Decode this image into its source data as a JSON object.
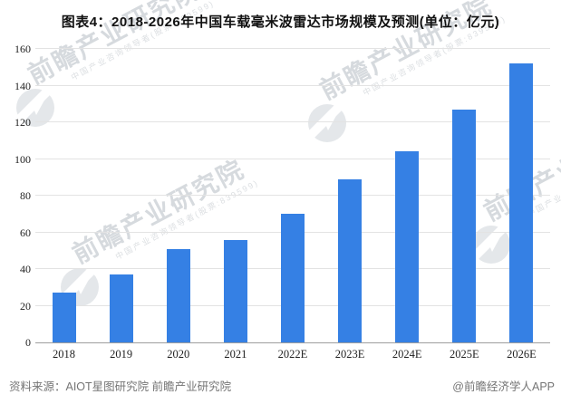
{
  "title": "图表4：2018-2026年中国车载毫米波雷达市场规模及预测(单位：亿元)",
  "chart_data": {
    "type": "bar",
    "title": "图表4：2018-2026年中国车载毫米波雷达市场规模及预测",
    "unit_label": "单位：亿元",
    "categories": [
      "2018",
      "2019",
      "2020",
      "2021",
      "2022E",
      "2023E",
      "2024E",
      "2025E",
      "2026E"
    ],
    "values": [
      27,
      37,
      51,
      56,
      70,
      89,
      104,
      127,
      152
    ],
    "xlabel": "",
    "ylabel": "",
    "ylim": [
      0,
      160
    ],
    "ytick_step": 20,
    "grid": true,
    "legend_position": "none",
    "bar_color": "#3580e4"
  },
  "watermark": {
    "icon": "qianzhan-logo-icon",
    "text": "前瞻产业研究院",
    "subtext": "中国产业咨询领导者(股票:839599)"
  },
  "footer": {
    "source": "资料来源：AIOT星图研究院 前瞻产业研究院",
    "credit": "@前瞻经济学人APP"
  }
}
